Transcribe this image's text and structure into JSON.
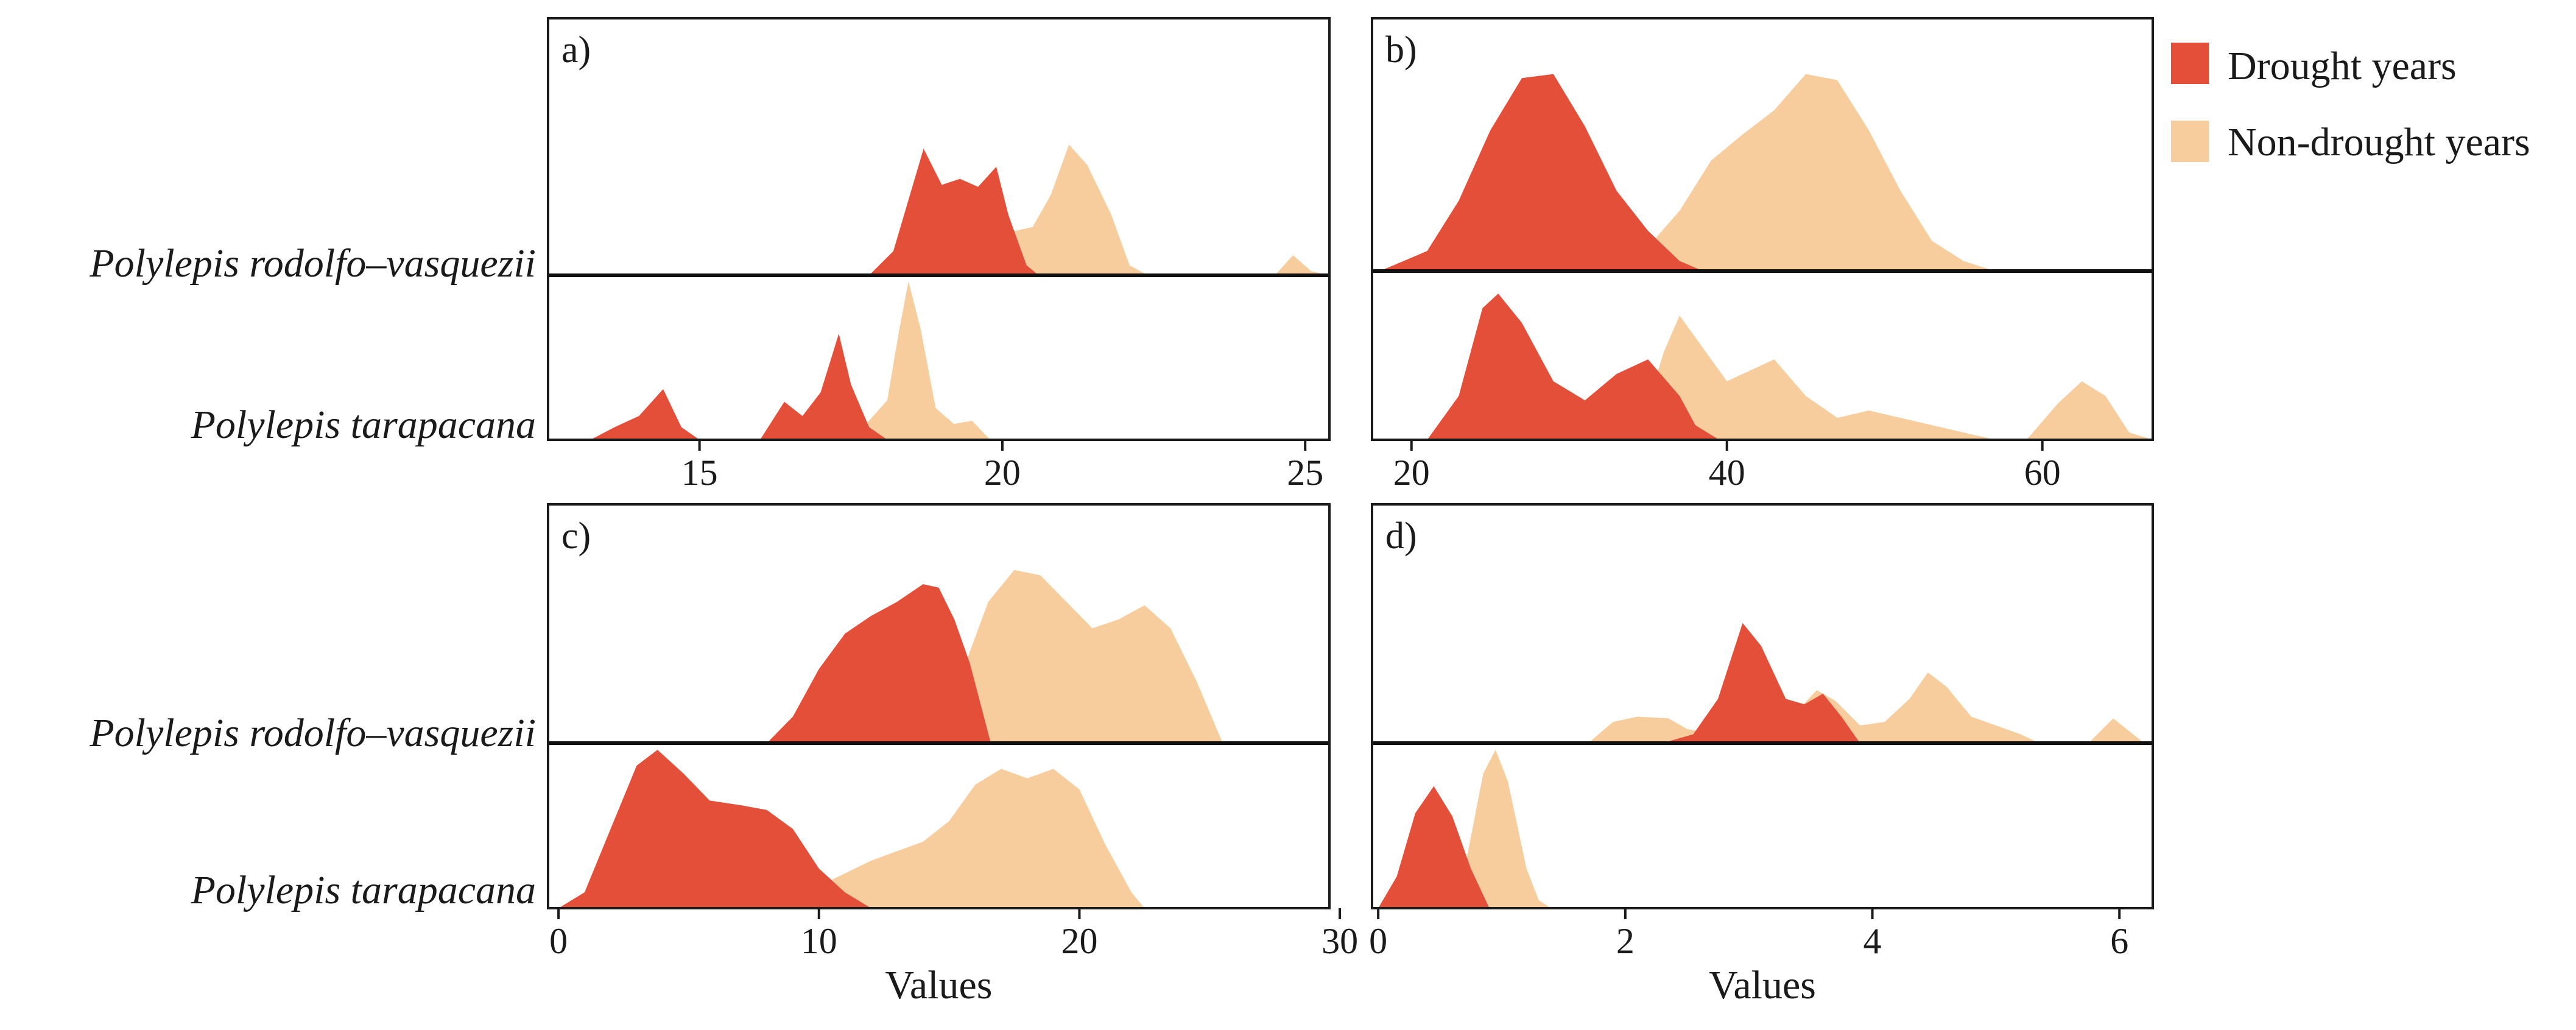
{
  "colors": {
    "drought": "#E34F38",
    "nondrought": "#F7CD9E"
  },
  "legend": {
    "items": [
      {
        "label": "Drought years",
        "color": "#E34F38"
      },
      {
        "label": "Non-drought years",
        "color": "#F7CD9E"
      }
    ]
  },
  "species": [
    "Polylepis rodolfo–vasquezii",
    "Polylepis tarapacana"
  ],
  "chart_data": [
    {
      "type": "area",
      "panel": "a)",
      "xlim": [
        12.5,
        25.4
      ],
      "ticks": [
        15,
        20,
        25
      ],
      "xlabel": "",
      "rows": [
        {
          "species": "Polylepis rodolfo–vasquezii",
          "drought": [
            [
              17.8,
              0
            ],
            [
              18.2,
              0.12
            ],
            [
              18.7,
              0.63
            ],
            [
              19.0,
              0.45
            ],
            [
              19.3,
              0.48
            ],
            [
              19.6,
              0.44
            ],
            [
              19.9,
              0.54
            ],
            [
              20.1,
              0.3
            ],
            [
              20.4,
              0.05
            ],
            [
              20.6,
              0
            ]
          ],
          "nondrought": [
            [
              19.6,
              0
            ],
            [
              19.9,
              0.12
            ],
            [
              20.2,
              0.22
            ],
            [
              20.5,
              0.24
            ],
            [
              20.8,
              0.4
            ],
            [
              21.1,
              0.65
            ],
            [
              21.4,
              0.55
            ],
            [
              21.8,
              0.3
            ],
            [
              22.1,
              0.05
            ],
            [
              22.4,
              0
            ],
            [
              24.5,
              0
            ],
            [
              24.8,
              0.1
            ],
            [
              25.1,
              0.02
            ],
            [
              25.4,
              0
            ]
          ]
        },
        {
          "species": "Polylepis tarapacana",
          "drought": [
            [
              13.2,
              0
            ],
            [
              13.6,
              0.08
            ],
            [
              14.0,
              0.15
            ],
            [
              14.4,
              0.32
            ],
            [
              14.7,
              0.08
            ],
            [
              15.0,
              0
            ],
            [
              16.0,
              0
            ],
            [
              16.4,
              0.24
            ],
            [
              16.7,
              0.15
            ],
            [
              17.0,
              0.3
            ],
            [
              17.3,
              0.67
            ],
            [
              17.5,
              0.35
            ],
            [
              17.8,
              0.08
            ],
            [
              18.1,
              0
            ]
          ],
          "nondrought": [
            [
              17.4,
              0
            ],
            [
              17.8,
              0.12
            ],
            [
              18.1,
              0.25
            ],
            [
              18.3,
              0.7
            ],
            [
              18.45,
              1.0
            ],
            [
              18.65,
              0.7
            ],
            [
              18.9,
              0.2
            ],
            [
              19.2,
              0.1
            ],
            [
              19.5,
              0.12
            ],
            [
              19.8,
              0
            ]
          ]
        }
      ]
    },
    {
      "type": "area",
      "panel": "b)",
      "xlim": [
        17.5,
        67.0
      ],
      "ticks": [
        20,
        40,
        60
      ],
      "xlabel": "",
      "rows": [
        {
          "species": "Polylepis rodolfo–vasquezii",
          "drought": [
            [
              18,
              0
            ],
            [
              21,
              0.1
            ],
            [
              23,
              0.35
            ],
            [
              25,
              0.7
            ],
            [
              27,
              0.96
            ],
            [
              29,
              0.98
            ],
            [
              31,
              0.72
            ],
            [
              33,
              0.4
            ],
            [
              35,
              0.2
            ],
            [
              37,
              0.05
            ],
            [
              38.5,
              0
            ]
          ],
          "nondrought": [
            [
              33,
              0
            ],
            [
              35,
              0.12
            ],
            [
              37,
              0.3
            ],
            [
              39,
              0.55
            ],
            [
              41,
              0.68
            ],
            [
              43,
              0.8
            ],
            [
              45,
              0.98
            ],
            [
              47,
              0.95
            ],
            [
              49,
              0.7
            ],
            [
              51,
              0.4
            ],
            [
              53,
              0.15
            ],
            [
              55,
              0.05
            ],
            [
              57,
              0
            ]
          ]
        },
        {
          "species": "Polylepis tarapacana",
          "drought": [
            [
              21,
              0
            ],
            [
              23,
              0.3
            ],
            [
              24.5,
              0.9
            ],
            [
              25.5,
              1.0
            ],
            [
              27,
              0.8
            ],
            [
              29,
              0.4
            ],
            [
              31,
              0.27
            ],
            [
              33,
              0.45
            ],
            [
              35,
              0.55
            ],
            [
              37,
              0.3
            ],
            [
              38,
              0.1
            ],
            [
              39.5,
              0
            ]
          ],
          "nondrought": [
            [
              34,
              0
            ],
            [
              35,
              0.25
            ],
            [
              36,
              0.6
            ],
            [
              37,
              0.85
            ],
            [
              38,
              0.7
            ],
            [
              40,
              0.4
            ],
            [
              41,
              0.45
            ],
            [
              43,
              0.55
            ],
            [
              45,
              0.3
            ],
            [
              47,
              0.15
            ],
            [
              49,
              0.2
            ],
            [
              51,
              0.15
            ],
            [
              53,
              0.1
            ],
            [
              55,
              0.05
            ],
            [
              57,
              0
            ],
            [
              59,
              0
            ],
            [
              61,
              0.25
            ],
            [
              62.5,
              0.4
            ],
            [
              64,
              0.3
            ],
            [
              65.5,
              0.05
            ],
            [
              67,
              0
            ]
          ]
        }
      ]
    },
    {
      "type": "area",
      "panel": "c)",
      "xlim": [
        -0.4,
        29.6
      ],
      "ticks": [
        0,
        10,
        20,
        30
      ],
      "xlabel": "Values",
      "rows": [
        {
          "species": "Polylepis rodolfo–vasquezii",
          "drought": [
            [
              8,
              0
            ],
            [
              9,
              0.15
            ],
            [
              10,
              0.42
            ],
            [
              11,
              0.62
            ],
            [
              12,
              0.72
            ],
            [
              13,
              0.8
            ],
            [
              14,
              0.9
            ],
            [
              14.6,
              0.88
            ],
            [
              15.2,
              0.7
            ],
            [
              15.8,
              0.45
            ],
            [
              16.6,
              0
            ]
          ],
          "nondrought": [
            [
              14.5,
              0
            ],
            [
              15.5,
              0.4
            ],
            [
              16.5,
              0.8
            ],
            [
              17.5,
              0.98
            ],
            [
              18.5,
              0.95
            ],
            [
              19.5,
              0.8
            ],
            [
              20.5,
              0.65
            ],
            [
              21.5,
              0.7
            ],
            [
              22.5,
              0.78
            ],
            [
              23.5,
              0.65
            ],
            [
              24.5,
              0.35
            ],
            [
              25.5,
              0
            ]
          ]
        },
        {
          "species": "Polylepis tarapacana",
          "drought": [
            [
              0,
              0
            ],
            [
              1,
              0.1
            ],
            [
              2,
              0.5
            ],
            [
              3,
              0.9
            ],
            [
              3.8,
              1.0
            ],
            [
              4.8,
              0.85
            ],
            [
              5.8,
              0.68
            ],
            [
              7,
              0.65
            ],
            [
              8,
              0.62
            ],
            [
              9,
              0.5
            ],
            [
              10,
              0.25
            ],
            [
              11,
              0.1
            ],
            [
              12,
              0
            ]
          ],
          "nondrought": [
            [
              0,
              0
            ],
            [
              2,
              0.04
            ],
            [
              4,
              0.08
            ],
            [
              6,
              0.02
            ],
            [
              8,
              0.04
            ],
            [
              10,
              0.14
            ],
            [
              12,
              0.3
            ],
            [
              14,
              0.42
            ],
            [
              15,
              0.55
            ],
            [
              16,
              0.78
            ],
            [
              17,
              0.88
            ],
            [
              18,
              0.82
            ],
            [
              19,
              0.88
            ],
            [
              20,
              0.75
            ],
            [
              21,
              0.4
            ],
            [
              22,
              0.1
            ],
            [
              22.5,
              0
            ]
          ]
        }
      ]
    },
    {
      "type": "area",
      "panel": "d)",
      "xlim": [
        -0.05,
        6.27
      ],
      "ticks": [
        0,
        2,
        4,
        6
      ],
      "xlabel": "Values",
      "rows": [
        {
          "species": "Polylepis rodolfo–vasquezii",
          "drought": [
            [
              2.3,
              0
            ],
            [
              2.55,
              0.05
            ],
            [
              2.75,
              0.25
            ],
            [
              2.95,
              0.68
            ],
            [
              3.1,
              0.55
            ],
            [
              3.3,
              0.25
            ],
            [
              3.45,
              0.22
            ],
            [
              3.6,
              0.28
            ],
            [
              3.75,
              0.15
            ],
            [
              3.9,
              0
            ]
          ],
          "nondrought": [
            [
              1.7,
              0
            ],
            [
              1.9,
              0.12
            ],
            [
              2.1,
              0.15
            ],
            [
              2.35,
              0.14
            ],
            [
              2.5,
              0.08
            ],
            [
              2.8,
              0.04
            ],
            [
              3.1,
              0.05
            ],
            [
              3.35,
              0.15
            ],
            [
              3.55,
              0.3
            ],
            [
              3.7,
              0.24
            ],
            [
              3.9,
              0.1
            ],
            [
              4.1,
              0.12
            ],
            [
              4.3,
              0.25
            ],
            [
              4.45,
              0.4
            ],
            [
              4.6,
              0.32
            ],
            [
              4.8,
              0.15
            ],
            [
              5.0,
              0.1
            ],
            [
              5.2,
              0.05
            ],
            [
              5.35,
              0
            ],
            [
              5.75,
              0
            ],
            [
              5.95,
              0.14
            ],
            [
              6.2,
              0
            ]
          ]
        },
        {
          "species": "Polylepis tarapacana",
          "drought": [
            [
              0,
              0
            ],
            [
              0.15,
              0.2
            ],
            [
              0.3,
              0.6
            ],
            [
              0.45,
              0.77
            ],
            [
              0.6,
              0.58
            ],
            [
              0.75,
              0.25
            ],
            [
              0.9,
              0
            ]
          ],
          "nondrought": [
            [
              0.55,
              0
            ],
            [
              0.7,
              0.25
            ],
            [
              0.85,
              0.85
            ],
            [
              0.95,
              1.0
            ],
            [
              1.05,
              0.8
            ],
            [
              1.2,
              0.25
            ],
            [
              1.3,
              0.05
            ],
            [
              1.4,
              0
            ]
          ]
        }
      ]
    }
  ]
}
